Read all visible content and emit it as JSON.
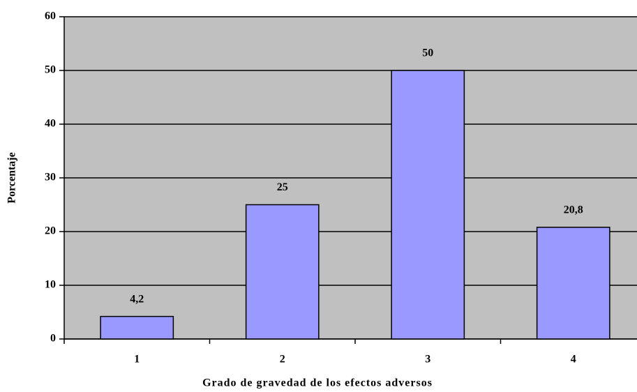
{
  "chart_data": {
    "type": "bar",
    "x_label": "Grado de gravedad de los efectos adversos",
    "y_label": "Porcentaje",
    "categories": [
      "1",
      "2",
      "3",
      "4"
    ],
    "values": [
      4.2,
      25,
      50,
      20.8
    ],
    "value_labels": [
      "4,2",
      "25",
      "50",
      "20,8"
    ],
    "color": "#9999ff",
    "plot_background": "#c0c0c0",
    "ylim": [
      0,
      60
    ],
    "yticks": [
      0,
      10,
      20,
      30,
      40,
      50,
      60
    ],
    "grid": true
  }
}
